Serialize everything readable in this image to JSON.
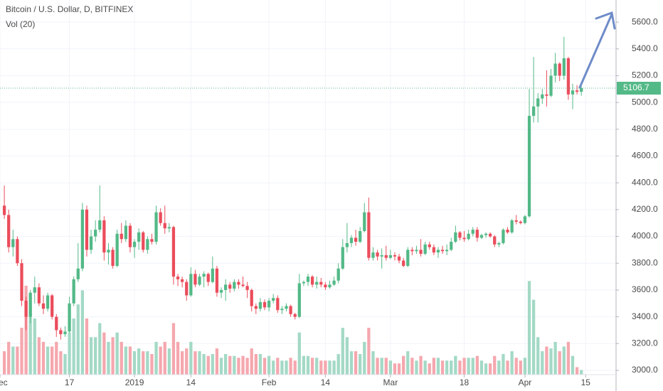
{
  "chart_data": {
    "type": "candlestick",
    "title": "Bitcoin / U.S. Dollar, D, BITFINEX",
    "indicator": "Vol (20)",
    "x": [
      "2018-12-02",
      "2018-12-03",
      "2018-12-04",
      "2018-12-05",
      "2018-12-06",
      "2018-12-07",
      "2018-12-08",
      "2018-12-09",
      "2018-12-10",
      "2018-12-11",
      "2018-12-12",
      "2018-12-13",
      "2018-12-14",
      "2018-12-15",
      "2018-12-16",
      "2018-12-17",
      "2018-12-18",
      "2018-12-19",
      "2018-12-20",
      "2018-12-21",
      "2018-12-22",
      "2018-12-23",
      "2018-12-24",
      "2018-12-25",
      "2018-12-26",
      "2018-12-27",
      "2018-12-28",
      "2018-12-29",
      "2018-12-30",
      "2018-12-31",
      "2019-01-01",
      "2019-01-02",
      "2019-01-03",
      "2019-01-04",
      "2019-01-05",
      "2019-01-06",
      "2019-01-07",
      "2019-01-08",
      "2019-01-09",
      "2019-01-10",
      "2019-01-11",
      "2019-01-12",
      "2019-01-13",
      "2019-01-14",
      "2019-01-15",
      "2019-01-16",
      "2019-01-17",
      "2019-01-18",
      "2019-01-19",
      "2019-01-20",
      "2019-01-21",
      "2019-01-22",
      "2019-01-23",
      "2019-01-24",
      "2019-01-25",
      "2019-01-26",
      "2019-01-27",
      "2019-01-28",
      "2019-01-29",
      "2019-01-30",
      "2019-01-31",
      "2019-02-01",
      "2019-02-02",
      "2019-02-03",
      "2019-02-04",
      "2019-02-05",
      "2019-02-06",
      "2019-02-07",
      "2019-02-08",
      "2019-02-09",
      "2019-02-10",
      "2019-02-11",
      "2019-02-12",
      "2019-02-13",
      "2019-02-14",
      "2019-02-15",
      "2019-02-16",
      "2019-02-17",
      "2019-02-18",
      "2019-02-19",
      "2019-02-20",
      "2019-02-21",
      "2019-02-22",
      "2019-02-23",
      "2019-02-24",
      "2019-02-25",
      "2019-02-26",
      "2019-02-27",
      "2019-02-28",
      "2019-03-01",
      "2019-03-02",
      "2019-03-03",
      "2019-03-04",
      "2019-03-05",
      "2019-03-06",
      "2019-03-07",
      "2019-03-08",
      "2019-03-09",
      "2019-03-10",
      "2019-03-11",
      "2019-03-12",
      "2019-03-13",
      "2019-03-14",
      "2019-03-15",
      "2019-03-16",
      "2019-03-17",
      "2019-03-18",
      "2019-03-19",
      "2019-03-20",
      "2019-03-21",
      "2019-03-22",
      "2019-03-23",
      "2019-03-24",
      "2019-03-25",
      "2019-03-26",
      "2019-03-27",
      "2019-03-28",
      "2019-03-29",
      "2019-03-30",
      "2019-03-31",
      "2019-04-01",
      "2019-04-02",
      "2019-04-03",
      "2019-04-04",
      "2019-04-05",
      "2019-04-06",
      "2019-04-07",
      "2019-04-08",
      "2019-04-09",
      "2019-04-10",
      "2019-04-11",
      "2019-04-12",
      "2019-04-13",
      "2019-04-14"
    ],
    "ohlc": [
      [
        4230,
        4380,
        4130,
        4160
      ],
      [
        4160,
        4200,
        3880,
        3920
      ],
      [
        3920,
        4050,
        3850,
        3980
      ],
      [
        3980,
        4000,
        3780,
        3800
      ],
      [
        3800,
        3830,
        3480,
        3520
      ],
      [
        3520,
        3550,
        3300,
        3400
      ],
      [
        3400,
        3600,
        3350,
        3580
      ],
      [
        3580,
        3700,
        3500,
        3620
      ],
      [
        3620,
        3650,
        3480,
        3500
      ],
      [
        3500,
        3560,
        3420,
        3460
      ],
      [
        3460,
        3580,
        3440,
        3560
      ],
      [
        3560,
        3570,
        3380,
        3400
      ],
      [
        3400,
        3420,
        3250,
        3300
      ],
      [
        3300,
        3320,
        3230,
        3270
      ],
      [
        3270,
        3330,
        3250,
        3290
      ],
      [
        3290,
        3550,
        3280,
        3500
      ],
      [
        3500,
        3700,
        3480,
        3680
      ],
      [
        3680,
        3950,
        3660,
        3760
      ],
      [
        3760,
        4250,
        3740,
        4200
      ],
      [
        4200,
        4230,
        3850,
        3900
      ],
      [
        3900,
        4050,
        3870,
        4000
      ],
      [
        4000,
        4120,
        3960,
        4050
      ],
      [
        4050,
        4380,
        4030,
        4120
      ],
      [
        4120,
        4150,
        3820,
        3880
      ],
      [
        3880,
        3950,
        3790,
        3900
      ],
      [
        3900,
        3920,
        3760,
        3780
      ],
      [
        3780,
        4050,
        3770,
        4020
      ],
      [
        4020,
        4100,
        3950,
        3980
      ],
      [
        3980,
        4120,
        3960,
        4080
      ],
      [
        4080,
        4100,
        3880,
        3920
      ],
      [
        3920,
        3980,
        3840,
        3960
      ],
      [
        3960,
        4060,
        3900,
        4030
      ],
      [
        4030,
        4040,
        3880,
        3900
      ],
      [
        3900,
        4000,
        3870,
        3980
      ],
      [
        3980,
        4020,
        3940,
        3960
      ],
      [
        3960,
        4230,
        3940,
        4180
      ],
      [
        4180,
        4210,
        4080,
        4100
      ],
      [
        4100,
        4230,
        4020,
        4060
      ],
      [
        4060,
        4100,
        4030,
        4070
      ],
      [
        4070,
        4080,
        3640,
        3700
      ],
      [
        3700,
        3720,
        3630,
        3680
      ],
      [
        3680,
        3700,
        3620,
        3660
      ],
      [
        3660,
        3680,
        3520,
        3560
      ],
      [
        3560,
        3770,
        3550,
        3720
      ],
      [
        3720,
        3750,
        3620,
        3640
      ],
      [
        3640,
        3720,
        3630,
        3700
      ],
      [
        3700,
        3740,
        3620,
        3720
      ],
      [
        3720,
        3730,
        3630,
        3660
      ],
      [
        3660,
        3850,
        3650,
        3760
      ],
      [
        3760,
        3780,
        3550,
        3580
      ],
      [
        3580,
        3620,
        3540,
        3600
      ],
      [
        3600,
        3680,
        3520,
        3640
      ],
      [
        3640,
        3660,
        3580,
        3610
      ],
      [
        3610,
        3680,
        3590,
        3660
      ],
      [
        3660,
        3680,
        3610,
        3640
      ],
      [
        3640,
        3700,
        3620,
        3630
      ],
      [
        3630,
        3660,
        3540,
        3600
      ],
      [
        3600,
        3610,
        3440,
        3480
      ],
      [
        3480,
        3500,
        3420,
        3460
      ],
      [
        3460,
        3540,
        3440,
        3510
      ],
      [
        3510,
        3530,
        3450,
        3470
      ],
      [
        3470,
        3540,
        3440,
        3520
      ],
      [
        3520,
        3570,
        3500,
        3540
      ],
      [
        3540,
        3560,
        3430,
        3450
      ],
      [
        3450,
        3480,
        3420,
        3460
      ],
      [
        3460,
        3500,
        3440,
        3480
      ],
      [
        3480,
        3490,
        3400,
        3420
      ],
      [
        3420,
        3430,
        3380,
        3400
      ],
      [
        3400,
        3720,
        3390,
        3650
      ],
      [
        3650,
        3670,
        3630,
        3660
      ],
      [
        3660,
        3720,
        3630,
        3700
      ],
      [
        3700,
        3710,
        3620,
        3640
      ],
      [
        3640,
        3700,
        3610,
        3660
      ],
      [
        3660,
        3690,
        3620,
        3640
      ],
      [
        3640,
        3660,
        3600,
        3620
      ],
      [
        3620,
        3670,
        3610,
        3640
      ],
      [
        3640,
        3700,
        3630,
        3670
      ],
      [
        3670,
        3800,
        3650,
        3760
      ],
      [
        3760,
        3980,
        3750,
        3920
      ],
      [
        3920,
        4100,
        3880,
        3950
      ],
      [
        3950,
        4010,
        3920,
        3990
      ],
      [
        3990,
        4050,
        3930,
        3960
      ],
      [
        3960,
        4070,
        3950,
        4040
      ],
      [
        4040,
        4250,
        4030,
        4180
      ],
      [
        4180,
        4290,
        3820,
        3840
      ],
      [
        3840,
        3920,
        3820,
        3880
      ],
      [
        3880,
        3900,
        3820,
        3850
      ],
      [
        3850,
        3910,
        3760,
        3860
      ],
      [
        3860,
        3930,
        3820,
        3840
      ],
      [
        3840,
        3900,
        3830,
        3860
      ],
      [
        3860,
        3880,
        3820,
        3850
      ],
      [
        3850,
        3870,
        3800,
        3820
      ],
      [
        3820,
        3840,
        3770,
        3780
      ],
      [
        3780,
        3920,
        3770,
        3900
      ],
      [
        3900,
        3920,
        3860,
        3890
      ],
      [
        3890,
        3930,
        3870,
        3900
      ],
      [
        3900,
        3980,
        3850,
        3870
      ],
      [
        3870,
        3960,
        3860,
        3940
      ],
      [
        3940,
        3960,
        3900,
        3920
      ],
      [
        3920,
        3940,
        3860,
        3880
      ],
      [
        3880,
        3920,
        3840,
        3900
      ],
      [
        3900,
        3930,
        3870,
        3890
      ],
      [
        3890,
        3940,
        3860,
        3900
      ],
      [
        3900,
        3990,
        3890,
        3960
      ],
      [
        3960,
        4080,
        3950,
        4030
      ],
      [
        4030,
        4040,
        3970,
        3990
      ],
      [
        3990,
        4040,
        3960,
        3980
      ],
      [
        3980,
        4050,
        3970,
        4020
      ],
      [
        4020,
        4070,
        4000,
        4050
      ],
      [
        4050,
        4070,
        3960,
        3990
      ],
      [
        3990,
        4020,
        3980,
        4010
      ],
      [
        4010,
        4030,
        3990,
        4020
      ],
      [
        4020,
        4030,
        3990,
        4000
      ],
      [
        4000,
        4010,
        3920,
        3940
      ],
      [
        3940,
        3960,
        3920,
        3950
      ],
      [
        3950,
        4060,
        3940,
        4050
      ],
      [
        4050,
        4070,
        4020,
        4030
      ],
      [
        4030,
        4130,
        4020,
        4120
      ],
      [
        4120,
        4160,
        4090,
        4110
      ],
      [
        4110,
        4120,
        4090,
        4100
      ],
      [
        4100,
        4160,
        4090,
        4150
      ],
      [
        4150,
        5100,
        4140,
        4900
      ],
      [
        4900,
        5340,
        4850,
        4970
      ],
      [
        4970,
        5070,
        4850,
        5030
      ],
      [
        5030,
        5100,
        4990,
        5060
      ],
      [
        5060,
        5240,
        4970,
        5050
      ],
      [
        5050,
        5250,
        5040,
        5200
      ],
      [
        5200,
        5370,
        5150,
        5290
      ],
      [
        5290,
        5300,
        5160,
        5200
      ],
      [
        5200,
        5490,
        5170,
        5330
      ],
      [
        5330,
        5340,
        5020,
        5060
      ],
      [
        5060,
        5140,
        4950,
        5090
      ],
      [
        5090,
        5130,
        5060,
        5080
      ],
      [
        5080,
        5120,
        5050,
        5106.7
      ]
    ],
    "volume": [
      25,
      35,
      30,
      30,
      50,
      95,
      70,
      60,
      40,
      35,
      30,
      30,
      35,
      25,
      22,
      45,
      60,
      75,
      90,
      60,
      40,
      40,
      55,
      45,
      35,
      40,
      45,
      35,
      30,
      30,
      25,
      28,
      25,
      25,
      22,
      35,
      30,
      35,
      28,
      55,
      35,
      25,
      28,
      35,
      25,
      25,
      22,
      20,
      22,
      28,
      18,
      22,
      20,
      20,
      18,
      20,
      18,
      28,
      22,
      22,
      18,
      20,
      15,
      18,
      15,
      15,
      18,
      15,
      45,
      20,
      20,
      18,
      18,
      15,
      15,
      15,
      15,
      22,
      50,
      40,
      25,
      25,
      22,
      35,
      50,
      25,
      18,
      18,
      18,
      15,
      12,
      12,
      20,
      25,
      18,
      15,
      20,
      15,
      12,
      18,
      18,
      15,
      15,
      15,
      20,
      15,
      18,
      18,
      18,
      20,
      15,
      12,
      12,
      20,
      15,
      22,
      15,
      25,
      18,
      15,
      18,
      100,
      80,
      40,
      25,
      30,
      28,
      35,
      25,
      30,
      35,
      20,
      8,
      5
    ],
    "up_color": "#53b987",
    "down_color": "#eb4d5c",
    "up_volume_color": "#a3d9c5",
    "down_volume_color": "#f5a7ae",
    "last_price": 5106.7,
    "xlim": [
      "2018-12-01",
      "2019-04-22"
    ],
    "xticks": [
      {
        "value": "2018-12-01",
        "label": "Dec"
      },
      {
        "value": "2018-12-17",
        "label": "17"
      },
      {
        "value": "2019-01-01",
        "label": "2019"
      },
      {
        "value": "2019-01-14",
        "label": "14"
      },
      {
        "value": "2019-02-01",
        "label": "Feb"
      },
      {
        "value": "2019-02-14",
        "label": "14"
      },
      {
        "value": "2019-03-01",
        "label": "Mar"
      },
      {
        "value": "2019-03-18",
        "label": "18"
      },
      {
        "value": "2019-04-01",
        "label": "Apr"
      },
      {
        "value": "2019-04-15",
        "label": "15"
      }
    ],
    "ylim": [
      2968,
      5765
    ],
    "yticks": [
      {
        "value": 3000,
        "label": "3000.0"
      },
      {
        "value": 3200,
        "label": "3200.0"
      },
      {
        "value": 3400,
        "label": "3400.0"
      },
      {
        "value": 3600,
        "label": "3600.0"
      },
      {
        "value": 3800,
        "label": "3800.0"
      },
      {
        "value": 4000,
        "label": "4000.0"
      },
      {
        "value": 4200,
        "label": "4200.0"
      },
      {
        "value": 4400,
        "label": "4400.0"
      },
      {
        "value": 4600,
        "label": "4600.0"
      },
      {
        "value": 4800,
        "label": "4800.0"
      },
      {
        "value": 5000,
        "label": "5000.0"
      },
      {
        "value": 5200,
        "label": "5200.0"
      },
      {
        "value": 5400,
        "label": "5400.0"
      },
      {
        "value": 5600,
        "label": "5600.0"
      }
    ],
    "vlim": [
      0,
      400
    ],
    "grid": true
  }
}
